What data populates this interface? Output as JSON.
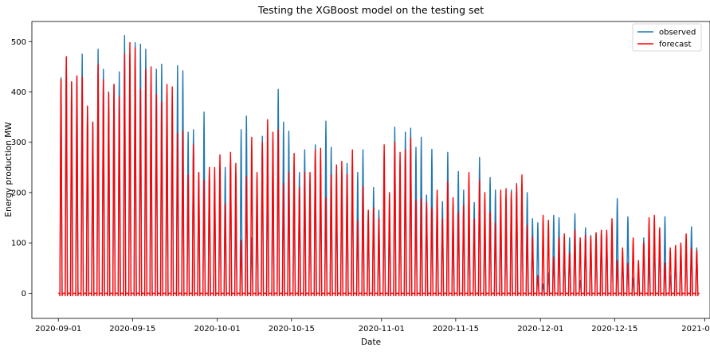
{
  "chart_data": {
    "type": "line",
    "title": "Testing the XGBoost model on the testing set",
    "xlabel": "Date",
    "ylabel": "Energy production MW",
    "xlim": [
      "2020-08-27",
      "2021-01-02"
    ],
    "ylim": [
      -50,
      540
    ],
    "x_ticks": [
      "2020-09-01",
      "2020-09-15",
      "2020-10-01",
      "2020-10-15",
      "2020-11-01",
      "2020-11-15",
      "2020-12-01",
      "2020-12-15",
      "2021-01-01"
    ],
    "y_ticks": [
      0,
      100,
      200,
      300,
      400,
      500
    ],
    "grid": false,
    "legend_position": "top-right",
    "sampling": "hourly, 2020-09-01 to 2020-12-31; one diurnal production peak per day (values listed are daily peak MW, zero overnight)",
    "dates_start": "2020-09-01",
    "series": [
      {
        "name": "observed",
        "color": "#1f77b4",
        "daily_peaks": [
          428,
          470,
          420,
          430,
          475,
          370,
          340,
          485,
          445,
          400,
          415,
          440,
          512,
          475,
          498,
          495,
          485,
          405,
          445,
          455,
          395,
          380,
          452,
          442,
          320,
          325,
          240,
          360,
          245,
          225,
          250,
          250,
          275,
          175,
          325,
          352,
          110,
          230,
          312,
          240,
          300,
          405,
          340,
          322,
          215,
          240,
          285,
          212,
          295,
          240,
          342,
          290,
          195,
          240,
          258,
          262,
          240,
          285,
          148,
          210,
          165,
          175,
          150,
          330,
          205,
          320,
          328,
          290,
          310,
          195,
          286,
          190,
          182,
          280,
          150,
          242,
          205,
          160,
          180,
          270,
          150,
          230,
          205,
          165,
          140,
          205,
          218,
          218,
          200,
          148,
          140,
          18,
          40,
          155,
          150,
          75,
          110,
          158,
          25,
          130,
          115,
          120,
          125,
          120,
          130,
          188,
          70,
          152,
          30,
          42,
          110,
          70,
          105,
          105,
          152,
          35,
          70,
          95,
          100,
          132,
          90
        ],
        "daily_trough": -3
      },
      {
        "name": "forecast",
        "color": "#ff0000",
        "daily_peaks": [
          425,
          470,
          420,
          432,
          430,
          372,
          340,
          455,
          425,
          398,
          415,
          390,
          475,
          498,
          488,
          405,
          445,
          450,
          395,
          380,
          415,
          410,
          318,
          322,
          235,
          295,
          240,
          225,
          250,
          250,
          275,
          178,
          280,
          258,
          105,
          232,
          310,
          240,
          300,
          345,
          320,
          325,
          218,
          240,
          278,
          210,
          240,
          240,
          285,
          288,
          190,
          235,
          255,
          262,
          236,
          285,
          145,
          212,
          165,
          170,
          148,
          295,
          200,
          300,
          280,
          285,
          308,
          185,
          188,
          180,
          170,
          205,
          148,
          222,
          190,
          160,
          175,
          240,
          148,
          225,
          200,
          162,
          140,
          205,
          208,
          200,
          215,
          235,
          135,
          112,
          35,
          155,
          145,
          72,
          110,
          118,
          80,
          125,
          110,
          115,
          112,
          120,
          125,
          125,
          148,
          65,
          90,
          60,
          110,
          65,
          100,
          150,
          155,
          130,
          60,
          90,
          95,
          100,
          118,
          90,
          85
        ],
        "daily_trough": -5
      }
    ]
  }
}
